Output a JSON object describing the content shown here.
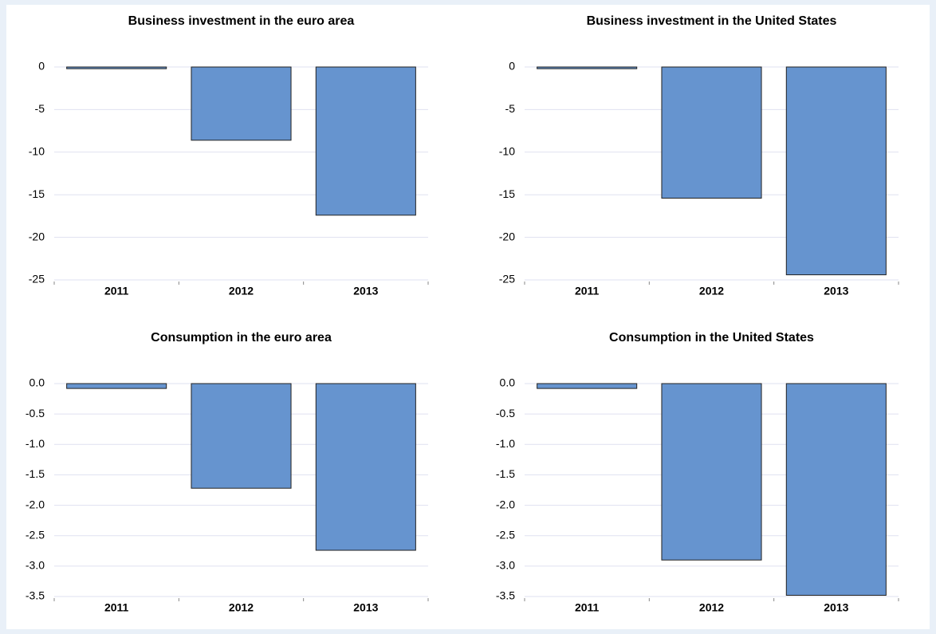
{
  "chart_data": [
    {
      "type": "bar",
      "title": "Business investment in the euro area",
      "categories": [
        "2011",
        "2012",
        "2013"
      ],
      "values": [
        -0.2,
        -8.6,
        -17.4
      ],
      "color": "#6694cf",
      "ylim": [
        -25,
        0
      ],
      "yticks": [
        0,
        -5,
        -10,
        -15,
        -20,
        -25
      ],
      "grid": true
    },
    {
      "type": "bar",
      "title": "Business investment in the United States",
      "categories": [
        "2011",
        "2012",
        "2013"
      ],
      "values": [
        -0.2,
        -15.4,
        -24.4
      ],
      "color": "#6694cf",
      "ylim": [
        -25,
        0
      ],
      "yticks": [
        0,
        -5,
        -10,
        -15,
        -20,
        -25
      ],
      "grid": true
    },
    {
      "type": "bar",
      "title": "Consumption in the euro area",
      "categories": [
        "2011",
        "2012",
        "2013"
      ],
      "values": [
        -0.08,
        -1.72,
        -2.74
      ],
      "color": "#6694cf",
      "ylim": [
        -3.5,
        0
      ],
      "yticks": [
        {
          "value": 0,
          "label": "0.0"
        },
        -0.5,
        {
          "value": -1,
          "label": "-1.0"
        },
        -1.5,
        {
          "value": -2,
          "label": "-2.0"
        },
        -2.5,
        {
          "value": -3,
          "label": "-3.0"
        },
        -3.5
      ],
      "grid": true
    },
    {
      "type": "bar",
      "title": "Consumption in the United States",
      "categories": [
        "2011",
        "2012",
        "2013"
      ],
      "values": [
        -0.08,
        -2.9,
        -3.48
      ],
      "color": "#6694cf",
      "ylim": [
        -3.5,
        0
      ],
      "yticks": [
        {
          "value": 0,
          "label": "0.0"
        },
        -0.5,
        {
          "value": -1,
          "label": "-1.0"
        },
        -1.5,
        {
          "value": -2,
          "label": "-2.0"
        },
        -2.5,
        {
          "value": -3,
          "label": "-3.0"
        },
        -3.5
      ],
      "grid": true
    }
  ]
}
